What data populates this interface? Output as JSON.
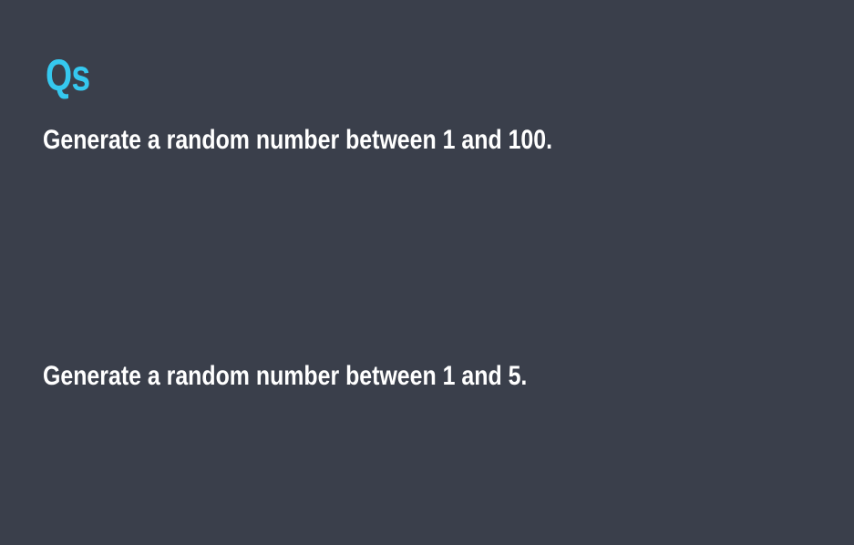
{
  "slide": {
    "title": "Qs",
    "title_color": "#35c8ef",
    "background_color": "#3a3f4b",
    "questions": [
      "Generate a random number between 1 and 100.",
      "Generate a random number between 1 and 5."
    ]
  }
}
